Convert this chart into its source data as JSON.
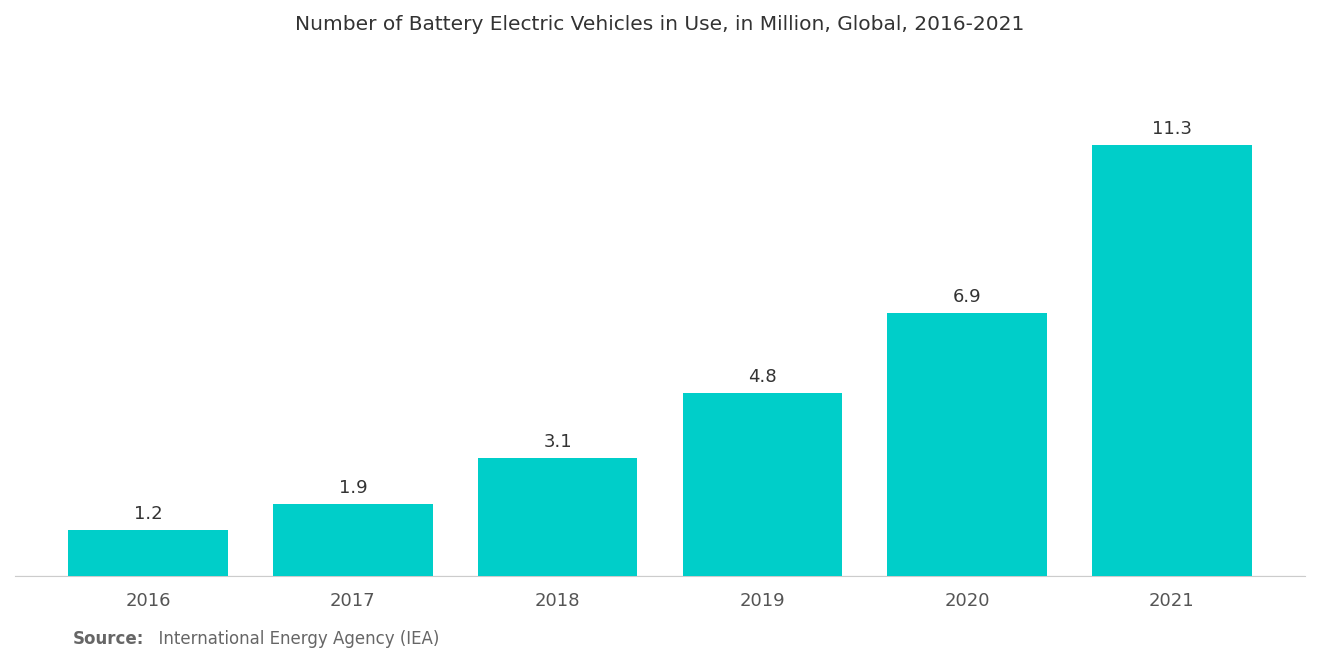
{
  "title": "Number of Battery Electric Vehicles in Use, in Million, Global, 2016-2021",
  "categories": [
    "2016",
    "2017",
    "2018",
    "2019",
    "2020",
    "2021"
  ],
  "values": [
    1.2,
    1.9,
    3.1,
    4.8,
    6.9,
    11.3
  ],
  "bar_color": "#00CEC9",
  "background_color": "#ffffff",
  "title_fontsize": 14.5,
  "label_fontsize": 13,
  "value_fontsize": 13,
  "source_bold": "Source:",
  "source_text": "  International Energy Agency (IEA)",
  "source_fontsize": 12,
  "ylim": [
    0,
    13.5
  ],
  "bar_width": 0.78
}
